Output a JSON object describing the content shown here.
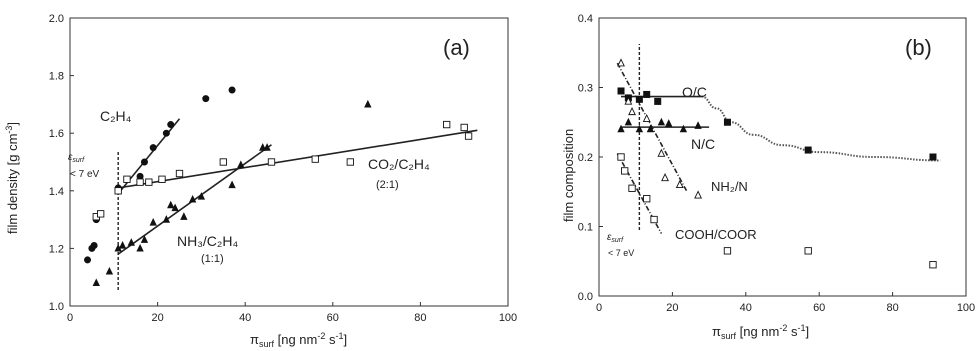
{
  "chart_data": [
    {
      "type": "scatter",
      "panel_label": "(a)",
      "xlabel_main": "π",
      "xlabel_sub": "surf",
      "xlabel_rest": " [ng nm",
      "xlabel_exp": "-2",
      "xlabel_end": " s",
      "xlabel_exp2": "-1",
      "xlabel_close": "]",
      "ylabel_main": "film density [g cm",
      "ylabel_exp": "-3",
      "ylabel_close": "]",
      "xlim": [
        0,
        100
      ],
      "ylim": [
        1.0,
        2.0
      ],
      "xticks": [
        0,
        20,
        40,
        60,
        80,
        100
      ],
      "yticks": [
        1.0,
        1.2,
        1.4,
        1.6,
        1.8,
        2.0
      ],
      "threshold_x": 11,
      "threshold_label": "ε",
      "threshold_label_sub": "surf",
      "threshold_label_2": "< 7 eV",
      "annotations": {
        "c2h4": "C₂H₄",
        "nh3": "NH₃/C₂H₄",
        "nh3_ratio": "(1:1)",
        "co2": "CO₂/C₂H₄",
        "co2_ratio": "(2:1)"
      },
      "series": [
        {
          "name": "C₂H₄",
          "marker": "circle-filled",
          "points": [
            [
              4,
              1.16
            ],
            [
              5,
              1.2
            ],
            [
              5.5,
              1.21
            ],
            [
              6,
              1.3
            ],
            [
              7,
              1.32
            ],
            [
              11,
              1.41
            ],
            [
              16,
              1.45
            ],
            [
              17,
              1.5
            ],
            [
              19,
              1.55
            ],
            [
              22,
              1.6
            ],
            [
              23,
              1.63
            ],
            [
              31,
              1.72
            ],
            [
              37,
              1.75
            ]
          ]
        },
        {
          "name": "NH₃/C₂H₄",
          "marker": "triangle-filled",
          "points": [
            [
              6,
              1.08
            ],
            [
              9,
              1.12
            ],
            [
              11,
              1.2
            ],
            [
              12,
              1.21
            ],
            [
              14,
              1.22
            ],
            [
              16,
              1.2
            ],
            [
              17,
              1.23
            ],
            [
              19,
              1.29
            ],
            [
              22,
              1.3
            ],
            [
              23,
              1.35
            ],
            [
              24,
              1.34
            ],
            [
              26,
              1.31
            ],
            [
              28,
              1.37
            ],
            [
              30,
              1.38
            ],
            [
              37,
              1.42
            ],
            [
              39,
              1.49
            ],
            [
              44,
              1.55
            ],
            [
              45,
              1.55
            ],
            [
              68,
              1.7
            ]
          ]
        },
        {
          "name": "CO₂/C₂H₄",
          "marker": "square-open",
          "points": [
            [
              6,
              1.31
            ],
            [
              7,
              1.32
            ],
            [
              11,
              1.4
            ],
            [
              13,
              1.44
            ],
            [
              16,
              1.43
            ],
            [
              18,
              1.43
            ],
            [
              21,
              1.44
            ],
            [
              25,
              1.46
            ],
            [
              35,
              1.5
            ],
            [
              46,
              1.5
            ],
            [
              56,
              1.51
            ],
            [
              64,
              1.5
            ],
            [
              86,
              1.63
            ],
            [
              90,
              1.62
            ],
            [
              91,
              1.59
            ]
          ]
        }
      ],
      "fit_lines": [
        {
          "name": "C₂H₄",
          "from": [
            11,
            1.39
          ],
          "to": [
            25,
            1.65
          ]
        },
        {
          "name": "NH₃/C₂H₄",
          "from": [
            11,
            1.18
          ],
          "to": [
            46,
            1.56
          ]
        },
        {
          "name": "CO₂/C₂H₄",
          "from": [
            11,
            1.41
          ],
          "to": [
            93,
            1.61
          ]
        }
      ]
    },
    {
      "type": "scatter",
      "panel_label": "(b)",
      "xlabel_main": "π",
      "xlabel_sub": "surf",
      "xlabel_rest": " [ng nm",
      "xlabel_exp": "-2",
      "xlabel_end": " s",
      "xlabel_exp2": "-1",
      "xlabel_close": "]",
      "ylabel_main": "film composition",
      "xlim": [
        0,
        100
      ],
      "ylim": [
        0.0,
        0.4
      ],
      "xticks": [
        0,
        20,
        40,
        60,
        80,
        100
      ],
      "yticks": [
        0.0,
        0.1,
        0.2,
        0.3,
        0.4
      ],
      "threshold_x": 11,
      "threshold_label": "ε",
      "threshold_label_sub": "surf",
      "threshold_label_2": "< 7 eV",
      "annotations": {
        "oc": "O/C",
        "nc": "N/C",
        "nh2n": "NH₂/N",
        "cooh": "COOH/COOR"
      },
      "series": [
        {
          "name": "O/C",
          "marker": "square-filled",
          "points": [
            [
              6,
              0.295
            ],
            [
              8,
              0.285
            ],
            [
              11,
              0.283
            ],
            [
              13,
              0.29
            ],
            [
              16,
              0.28
            ],
            [
              35,
              0.25
            ],
            [
              57,
              0.21
            ],
            [
              91,
              0.2
            ]
          ]
        },
        {
          "name": "N/C",
          "marker": "triangle-filled",
          "points": [
            [
              6,
              0.24
            ],
            [
              8,
              0.25
            ],
            [
              11,
              0.24
            ],
            [
              14,
              0.24
            ],
            [
              17,
              0.25
            ],
            [
              19,
              0.248
            ],
            [
              23,
              0.24
            ],
            [
              27,
              0.245
            ]
          ]
        },
        {
          "name": "NH₂/N",
          "marker": "triangle-open",
          "points": [
            [
              6,
              0.335
            ],
            [
              8,
              0.28
            ],
            [
              9,
              0.265
            ],
            [
              13,
              0.255
            ],
            [
              17,
              0.205
            ],
            [
              18,
              0.17
            ],
            [
              22,
              0.16
            ],
            [
              27,
              0.145
            ]
          ]
        },
        {
          "name": "COOH/COOR",
          "marker": "square-open",
          "points": [
            [
              6,
              0.2
            ],
            [
              7,
              0.18
            ],
            [
              9,
              0.155
            ],
            [
              13,
              0.14
            ],
            [
              15,
              0.11
            ],
            [
              35,
              0.065
            ],
            [
              57,
              0.065
            ],
            [
              91,
              0.045
            ]
          ]
        }
      ],
      "fit_lines": [
        {
          "name": "O/C",
          "from": [
            6,
            0.287
          ],
          "to": [
            28,
            0.287
          ],
          "style": "solid"
        },
        {
          "name": "N/C",
          "from": [
            6,
            0.243
          ],
          "to": [
            30,
            0.243
          ],
          "style": "solid"
        },
        {
          "name": "NH₂/N",
          "from": [
            5,
            0.335
          ],
          "to": [
            24,
            0.15
          ],
          "style": "dashdot"
        },
        {
          "name": "COOH/COOR",
          "from": [
            5,
            0.205
          ],
          "to": [
            17,
            0.09
          ],
          "style": "dashdot"
        }
      ],
      "trend_curve": {
        "name": "O/C",
        "points": [
          [
            28,
            0.287
          ],
          [
            32,
            0.27
          ],
          [
            36,
            0.25
          ],
          [
            42,
            0.232
          ],
          [
            50,
            0.217
          ],
          [
            60,
            0.207
          ],
          [
            75,
            0.2
          ],
          [
            93,
            0.195
          ]
        ]
      }
    }
  ]
}
